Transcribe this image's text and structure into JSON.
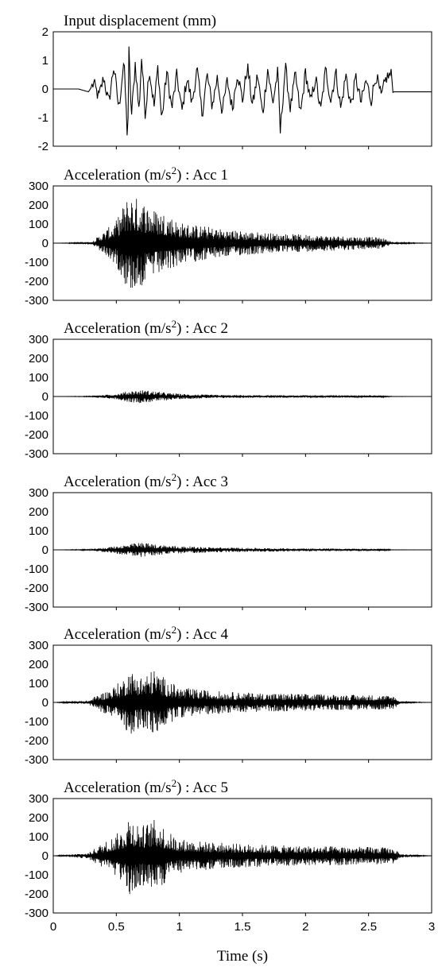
{
  "figure": {
    "x_axis_label": "Time (s)"
  },
  "chart_data": [
    {
      "type": "line",
      "title": "Input displacement (mm)",
      "title_parts": {
        "prefix": "Input displacement (mm)",
        "sup": "",
        "suffix": ""
      },
      "xlim": [
        0,
        3
      ],
      "ylim": [
        -2,
        2
      ],
      "yticks": [
        "2",
        "1",
        "0",
        "-1",
        "-2"
      ],
      "xticks": [],
      "series": [
        {
          "x": [
            0,
            0.2,
            0.28,
            0.32,
            0.36,
            0.4,
            0.44,
            0.48,
            0.52,
            0.56,
            0.59,
            0.6,
            0.62,
            0.65,
            0.68,
            0.7,
            0.73,
            0.76,
            0.8,
            0.83,
            0.86,
            0.9,
            0.94,
            0.98,
            1.02,
            1.06,
            1.1,
            1.14,
            1.18,
            1.22,
            1.26,
            1.3,
            1.34,
            1.38,
            1.42,
            1.46,
            1.5,
            1.54,
            1.58,
            1.62,
            1.66,
            1.7,
            1.74,
            1.78,
            1.8,
            1.84,
            1.88,
            1.92,
            1.96,
            2.0,
            2.04,
            2.08,
            2.12,
            2.16,
            2.2,
            2.24,
            2.28,
            2.32,
            2.36,
            2.4,
            2.44,
            2.48,
            2.52,
            2.56,
            2.6,
            2.64,
            2.68,
            2.7,
            2.75,
            3.0
          ],
          "y": [
            0,
            0,
            -0.1,
            0.2,
            -0.3,
            0.4,
            -0.5,
            0.8,
            -0.7,
            1.0,
            -1.9,
            1.3,
            -1.0,
            0.9,
            -0.8,
            1.1,
            -0.9,
            0.7,
            -0.6,
            0.8,
            -1.1,
            0.6,
            -0.7,
            0.5,
            -0.8,
            0.4,
            -0.5,
            0.7,
            -0.9,
            0.5,
            -0.6,
            0.4,
            -0.8,
            0.3,
            -0.7,
            0.6,
            -0.4,
            0.8,
            -0.6,
            0.5,
            -0.9,
            0.7,
            -0.5,
            0.6,
            -1.5,
            0.8,
            -0.7,
            0.5,
            -0.9,
            0.6,
            -0.5,
            0.4,
            -0.8,
            0.7,
            -0.4,
            0.6,
            -0.7,
            0.5,
            -0.6,
            0.4,
            -0.5,
            0.3,
            -0.4,
            0.5,
            -0.3,
            0.4,
            0.5,
            -0.1,
            -0.1,
            -0.1
          ]
        }
      ]
    },
    {
      "type": "line",
      "title": "Acceleration (m/s2) : Acc 1",
      "title_parts": {
        "prefix": "Acceleration (m/s",
        "sup": "2",
        "suffix": ") : Acc 1"
      },
      "xlim": [
        0,
        3
      ],
      "ylim": [
        -300,
        300
      ],
      "yticks": [
        "300",
        "200",
        "100",
        "0",
        "-100",
        "-200",
        "-300"
      ],
      "xticks": [],
      "series": [
        {
          "x": [
            0,
            0.3,
            0.4,
            0.5,
            0.6,
            0.7,
            0.8,
            0.9,
            1.0,
            1.2,
            1.4,
            1.6,
            1.8,
            2.0,
            2.2,
            2.4,
            2.6,
            2.7,
            3.0
          ],
          "y": [
            0,
            5,
            60,
            120,
            260,
            230,
            180,
            160,
            110,
            90,
            70,
            60,
            50,
            45,
            40,
            35,
            30,
            5,
            0
          ]
        }
      ]
    },
    {
      "type": "line",
      "title": "Acceleration (m/s2) : Acc 2",
      "title_parts": {
        "prefix": "Acceleration (m/s",
        "sup": "2",
        "suffix": ") : Acc 2"
      },
      "xlim": [
        0,
        3
      ],
      "ylim": [
        -300,
        300
      ],
      "yticks": [
        "300",
        "200",
        "100",
        "0",
        "-100",
        "-200",
        "-300"
      ],
      "xticks": [],
      "series": [
        {
          "x": [
            0,
            0.3,
            0.4,
            0.5,
            0.6,
            0.7,
            0.8,
            0.9,
            1.0,
            1.2,
            1.4,
            1.6,
            1.8,
            2.0,
            2.2,
            2.4,
            2.6,
            2.7,
            3.0
          ],
          "y": [
            0,
            2,
            8,
            15,
            30,
            35,
            28,
            20,
            14,
            10,
            8,
            7,
            6,
            6,
            5,
            5,
            4,
            1,
            0
          ]
        }
      ]
    },
    {
      "type": "line",
      "title": "Acceleration (m/s2) : Acc 3",
      "title_parts": {
        "prefix": "Acceleration (m/s",
        "sup": "2",
        "suffix": ") : Acc 3"
      },
      "xlim": [
        0,
        3
      ],
      "ylim": [
        -300,
        300
      ],
      "yticks": [
        "300",
        "200",
        "100",
        "0",
        "-100",
        "-200",
        "-300"
      ],
      "xticks": [],
      "series": [
        {
          "x": [
            0,
            0.3,
            0.4,
            0.5,
            0.6,
            0.7,
            0.8,
            0.9,
            1.0,
            1.2,
            1.4,
            1.6,
            1.8,
            2.0,
            2.2,
            2.4,
            2.6,
            2.7,
            3.0
          ],
          "y": [
            0,
            3,
            12,
            20,
            30,
            40,
            30,
            25,
            20,
            15,
            12,
            10,
            9,
            8,
            7,
            6,
            5,
            1,
            0
          ]
        }
      ]
    },
    {
      "type": "line",
      "title": "Acceleration (m/s2) : Acc 4",
      "title_parts": {
        "prefix": "Acceleration (m/s",
        "sup": "2",
        "suffix": ") : Acc 4"
      },
      "xlim": [
        0,
        3
      ],
      "ylim": [
        -300,
        300
      ],
      "yticks": [
        "300",
        "200",
        "100",
        "0",
        "-100",
        "-200",
        "-300"
      ],
      "xticks": [],
      "series": [
        {
          "x": [
            0,
            0.28,
            0.35,
            0.45,
            0.55,
            0.6,
            0.7,
            0.8,
            0.9,
            1.0,
            1.2,
            1.4,
            1.6,
            1.8,
            2.0,
            2.2,
            2.4,
            2.6,
            2.7,
            2.75,
            3.0
          ],
          "y": [
            0,
            10,
            40,
            70,
            120,
            170,
            140,
            175,
            120,
            80,
            65,
            55,
            50,
            48,
            45,
            42,
            40,
            38,
            35,
            5,
            0
          ]
        }
      ]
    },
    {
      "type": "line",
      "title": "Acceleration (m/s2) : Acc 5",
      "title_parts": {
        "prefix": "Acceleration (m/s",
        "sup": "2",
        "suffix": ") : Acc 5"
      },
      "xlim": [
        0,
        3
      ],
      "ylim": [
        -300,
        300
      ],
      "yticks": [
        "300",
        "200",
        "100",
        "0",
        "-100",
        "-200",
        "-300"
      ],
      "xticks": [
        "0",
        "0.5",
        "1",
        "1.5",
        "2",
        "2.5",
        "3"
      ],
      "series": [
        {
          "x": [
            0,
            0.28,
            0.35,
            0.45,
            0.55,
            0.6,
            0.7,
            0.8,
            0.85,
            0.9,
            1.0,
            1.2,
            1.4,
            1.6,
            1.8,
            2.0,
            2.2,
            2.4,
            2.6,
            2.7,
            2.75,
            3.0
          ],
          "y": [
            0,
            15,
            50,
            90,
            140,
            220,
            160,
            190,
            180,
            130,
            90,
            75,
            65,
            60,
            55,
            52,
            50,
            48,
            45,
            40,
            10,
            0
          ]
        }
      ]
    }
  ]
}
